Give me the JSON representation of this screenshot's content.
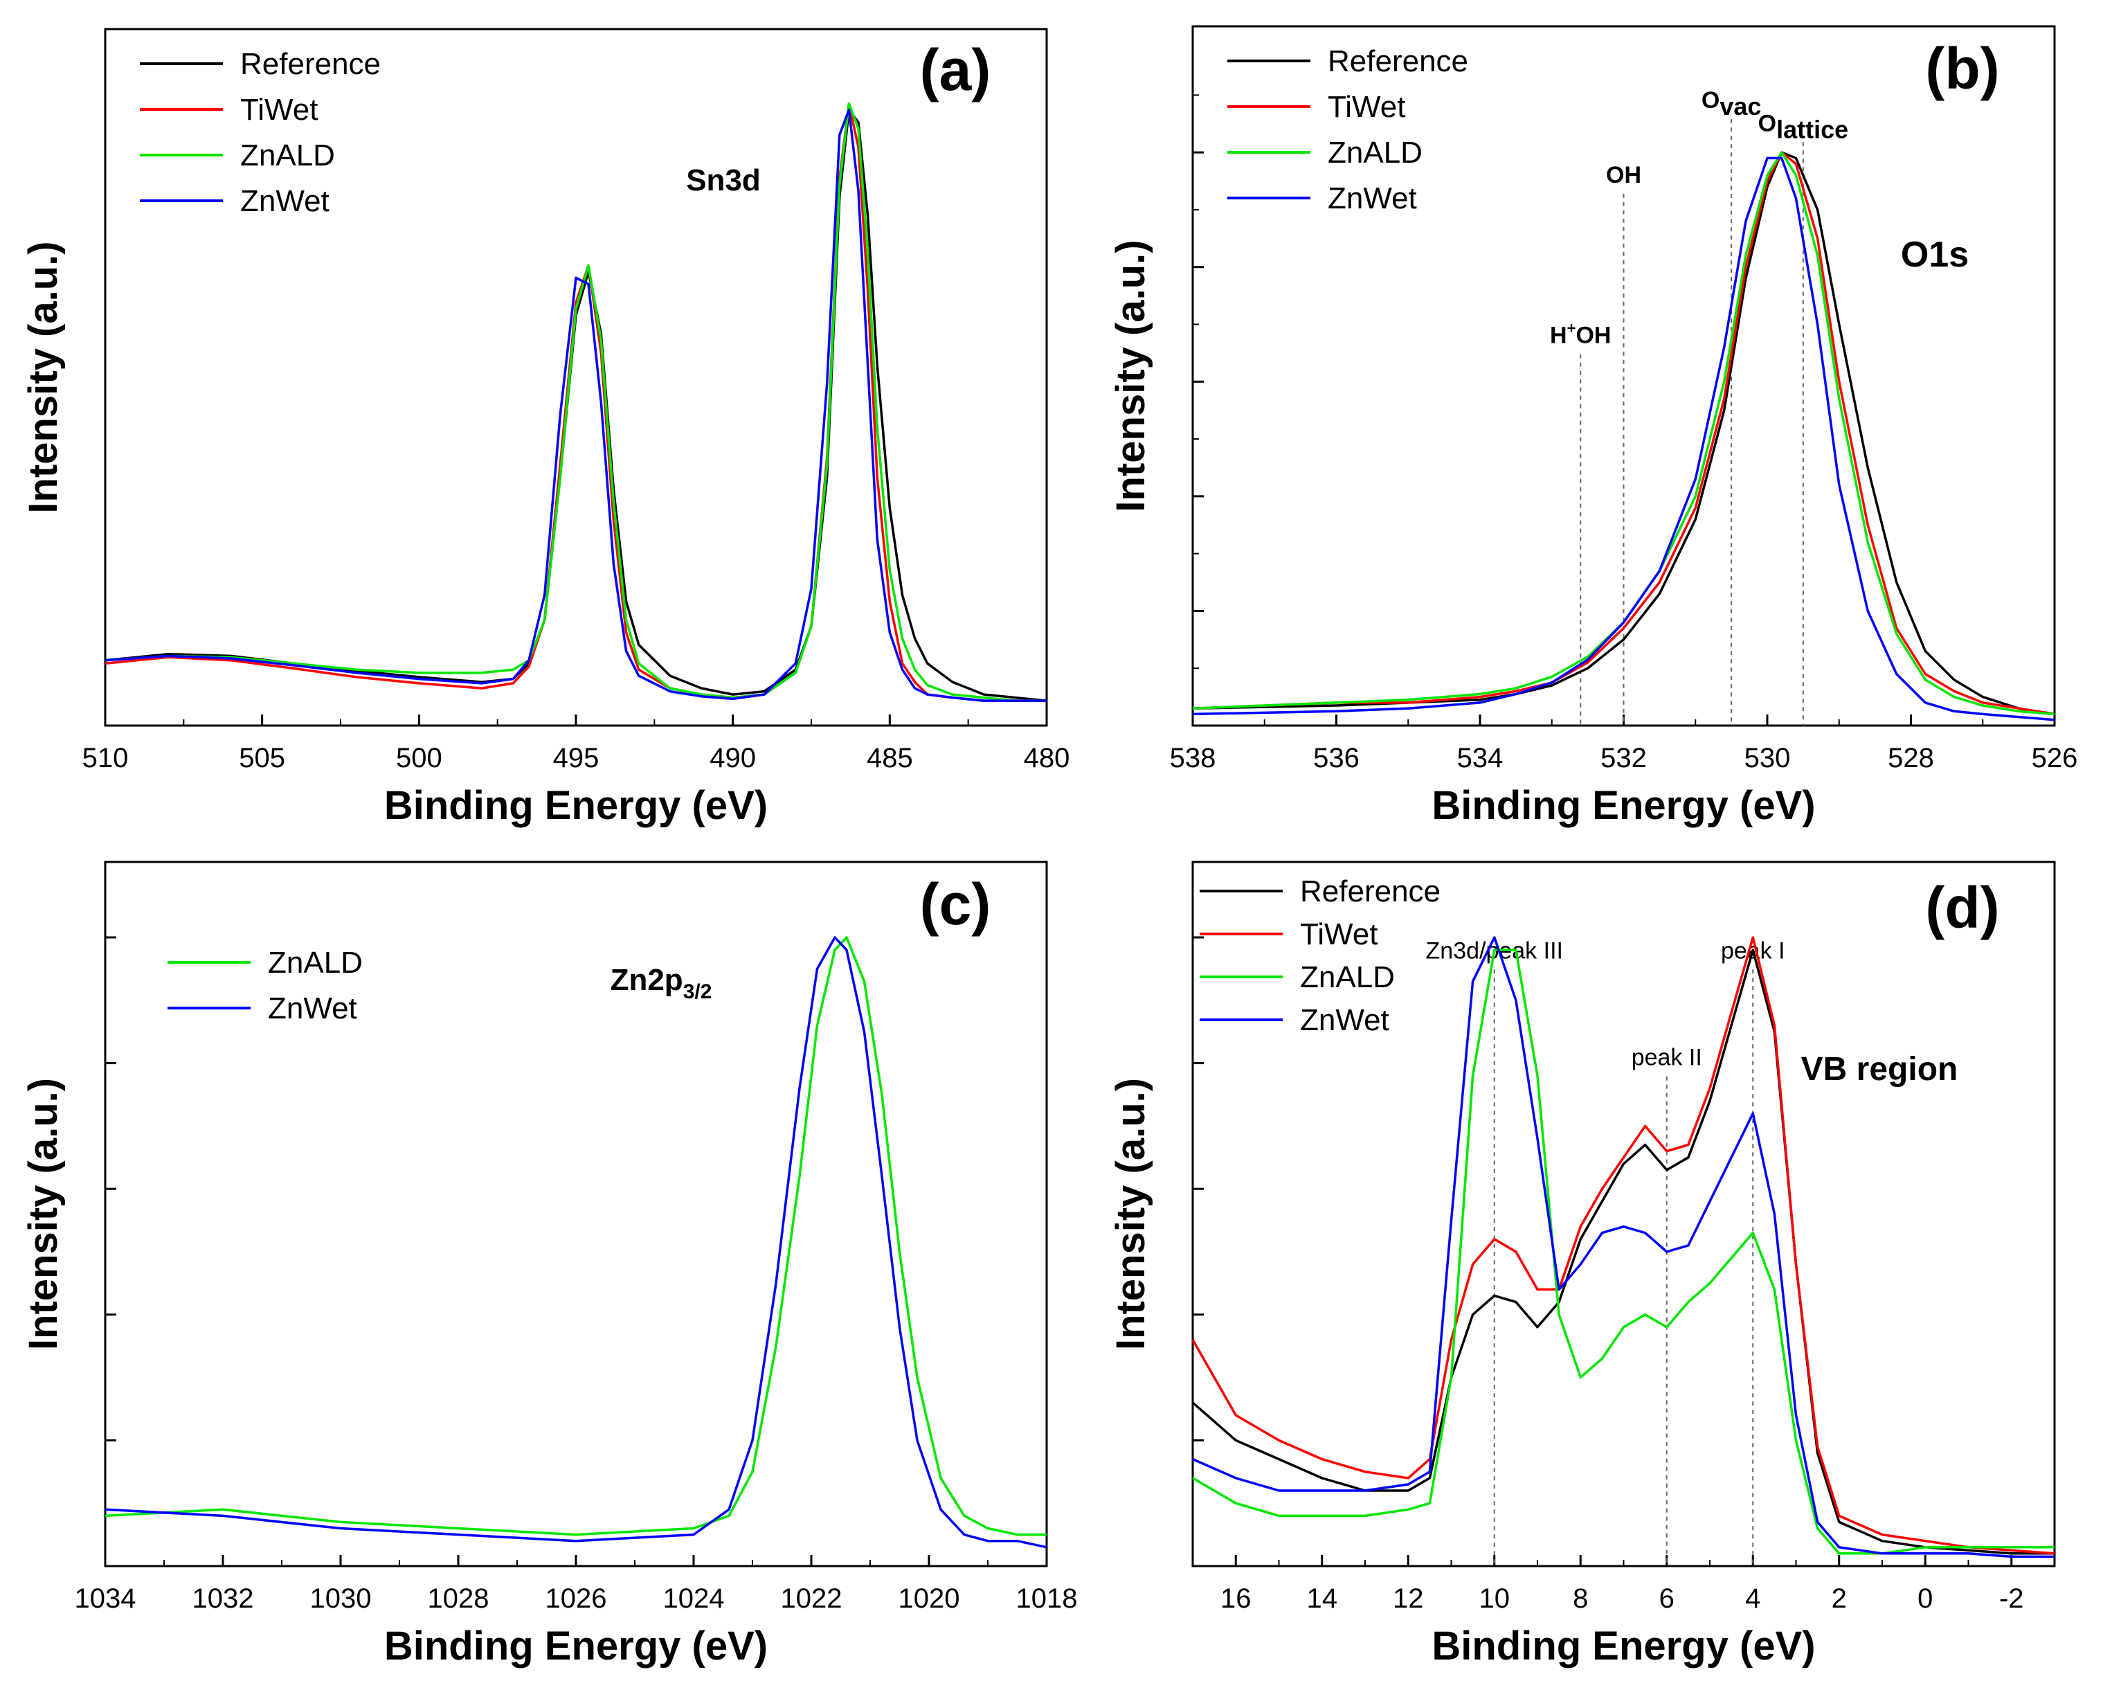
{
  "colors": {
    "Reference": "#000000",
    "TiWet": "#ff0000",
    "ZnALD": "#00e600",
    "ZnWet": "#0000ff",
    "axis": "#000000",
    "refline": "#666666"
  },
  "chart_data": [
    {
      "type": "line",
      "panel": "(a)",
      "title": "Sn3d",
      "xlabel": "Binding Energy (eV)",
      "ylabel": "Intensity (a.u.)",
      "xlim": [
        510,
        480
      ],
      "ylim": [
        0,
        1.0
      ],
      "xticks": [
        510,
        505,
        500,
        495,
        490,
        485,
        480
      ],
      "yticks": [],
      "legend": [
        "Reference",
        "TiWet",
        "ZnALD",
        "ZnWet"
      ],
      "annotations": [],
      "series": [
        {
          "name": "Reference",
          "x": [
            510,
            508,
            506,
            504,
            502,
            500,
            498,
            497,
            496.5,
            496,
            495.5,
            495,
            494.6,
            494.2,
            493.8,
            493.4,
            493,
            492,
            491,
            490,
            489,
            488,
            487.5,
            487,
            486.6,
            486.3,
            486,
            485.7,
            485.4,
            485,
            484.6,
            484.2,
            483.8,
            483,
            482,
            481,
            480
          ],
          "y": [
            0.105,
            0.115,
            0.112,
            0.1,
            0.088,
            0.078,
            0.07,
            0.075,
            0.1,
            0.17,
            0.4,
            0.66,
            0.73,
            0.63,
            0.38,
            0.2,
            0.13,
            0.08,
            0.06,
            0.05,
            0.055,
            0.09,
            0.16,
            0.4,
            0.85,
            0.99,
            0.97,
            0.82,
            0.58,
            0.35,
            0.21,
            0.14,
            0.1,
            0.07,
            0.05,
            0.045,
            0.04
          ]
        },
        {
          "name": "TiWet",
          "x": [
            510,
            508,
            506,
            504,
            502,
            500,
            498,
            497,
            496.5,
            496,
            495.5,
            495,
            494.6,
            494.2,
            493.8,
            493.4,
            493,
            492,
            491,
            490,
            489,
            488,
            487.5,
            487,
            486.6,
            486.3,
            486,
            485.7,
            485.4,
            485,
            484.6,
            484.2,
            483.8,
            483,
            482,
            481,
            480
          ],
          "y": [
            0.1,
            0.11,
            0.105,
            0.092,
            0.078,
            0.068,
            0.06,
            0.068,
            0.095,
            0.17,
            0.42,
            0.68,
            0.74,
            0.6,
            0.33,
            0.15,
            0.09,
            0.06,
            0.05,
            0.045,
            0.05,
            0.085,
            0.16,
            0.43,
            0.88,
            1.0,
            0.93,
            0.7,
            0.4,
            0.2,
            0.1,
            0.07,
            0.05,
            0.045,
            0.04,
            0.04,
            0.04
          ]
        },
        {
          "name": "ZnALD",
          "x": [
            510,
            508,
            506,
            504,
            502,
            500,
            498,
            497,
            496.5,
            496,
            495.5,
            495,
            494.6,
            494.2,
            493.8,
            493.4,
            493,
            492,
            491,
            490,
            489,
            488,
            487.5,
            487,
            486.6,
            486.3,
            486,
            485.7,
            485.4,
            485,
            484.6,
            484.2,
            483.8,
            483,
            482,
            481,
            480
          ],
          "y": [
            0.105,
            0.112,
            0.11,
            0.1,
            0.09,
            0.085,
            0.085,
            0.09,
            0.105,
            0.17,
            0.4,
            0.67,
            0.74,
            0.62,
            0.36,
            0.17,
            0.1,
            0.06,
            0.05,
            0.045,
            0.05,
            0.085,
            0.16,
            0.42,
            0.87,
            1.0,
            0.96,
            0.76,
            0.48,
            0.25,
            0.14,
            0.09,
            0.065,
            0.05,
            0.045,
            0.04,
            0.04
          ]
        },
        {
          "name": "ZnWet",
          "x": [
            510,
            508,
            506,
            504,
            502,
            500,
            498,
            497,
            496.5,
            496,
            495.5,
            495,
            494.6,
            494.2,
            493.8,
            493.4,
            493,
            492,
            491,
            490,
            489,
            488,
            487.5,
            487,
            486.6,
            486.3,
            486,
            485.7,
            485.4,
            485,
            484.6,
            484.2,
            483.8,
            483,
            482,
            481,
            480
          ],
          "y": [
            0.105,
            0.112,
            0.108,
            0.097,
            0.085,
            0.075,
            0.068,
            0.075,
            0.105,
            0.21,
            0.5,
            0.72,
            0.71,
            0.52,
            0.26,
            0.12,
            0.08,
            0.055,
            0.047,
            0.043,
            0.05,
            0.1,
            0.22,
            0.55,
            0.95,
            0.99,
            0.86,
            0.58,
            0.3,
            0.15,
            0.09,
            0.06,
            0.05,
            0.045,
            0.04,
            0.04,
            0.04
          ]
        }
      ]
    },
    {
      "type": "line",
      "panel": "(b)",
      "title": "O1s",
      "xlabel": "Binding Energy (eV)",
      "ylabel": "Intensity (a.u.)",
      "xlim": [
        538,
        526
      ],
      "ylim": [
        0,
        1.0
      ],
      "xticks": [
        538,
        536,
        534,
        532,
        530,
        528,
        526
      ],
      "yticks": [
        0.2,
        0.4,
        0.6,
        0.8,
        1.0
      ],
      "legend": [
        "Reference",
        "TiWet",
        "ZnALD",
        "ZnWet"
      ],
      "annotations": [
        {
          "label": "H",
          "sup": "+",
          "rest": "OH",
          "x": 532.6,
          "top": 0.66
        },
        {
          "label": "OH",
          "sup": "",
          "rest": "",
          "x": 532.0,
          "top": 0.94
        },
        {
          "label": "O",
          "sub": "vac",
          "rest": "",
          "x": 530.5,
          "top": 1.07
        },
        {
          "label": "O",
          "sub": "lattice",
          "rest": "",
          "x": 529.5,
          "top": 1.03
        }
      ],
      "series": [
        {
          "name": "Reference",
          "x": [
            538,
            536,
            535,
            534,
            533.5,
            533,
            532.5,
            532,
            531.5,
            531,
            530.6,
            530.3,
            530,
            529.8,
            529.6,
            529.3,
            529,
            528.6,
            528.2,
            527.8,
            527.4,
            527,
            526.5,
            526
          ],
          "y": [
            0.03,
            0.035,
            0.04,
            0.045,
            0.055,
            0.07,
            0.1,
            0.15,
            0.23,
            0.36,
            0.55,
            0.78,
            0.94,
            1.0,
            0.99,
            0.9,
            0.7,
            0.45,
            0.25,
            0.13,
            0.08,
            0.05,
            0.03,
            0.02
          ]
        },
        {
          "name": "TiWet",
          "x": [
            538,
            536,
            535,
            534,
            533.5,
            533,
            532.5,
            532,
            531.5,
            531,
            530.6,
            530.3,
            530,
            529.8,
            529.6,
            529.3,
            529,
            528.6,
            528.2,
            527.8,
            527.4,
            527,
            526.5,
            526
          ],
          "y": [
            0.03,
            0.04,
            0.04,
            0.05,
            0.06,
            0.075,
            0.11,
            0.17,
            0.25,
            0.38,
            0.57,
            0.8,
            0.95,
            1.0,
            0.98,
            0.85,
            0.6,
            0.35,
            0.17,
            0.09,
            0.06,
            0.04,
            0.03,
            0.02
          ]
        },
        {
          "name": "ZnALD",
          "x": [
            538,
            536,
            535,
            534,
            533.5,
            533,
            532.5,
            532,
            531.5,
            531,
            530.6,
            530.3,
            530,
            529.8,
            529.6,
            529.3,
            529,
            528.6,
            528.2,
            527.8,
            527.4,
            527,
            526.5,
            526
          ],
          "y": [
            0.03,
            0.04,
            0.045,
            0.055,
            0.065,
            0.085,
            0.12,
            0.18,
            0.27,
            0.4,
            0.6,
            0.82,
            0.96,
            1.0,
            0.96,
            0.82,
            0.57,
            0.32,
            0.16,
            0.08,
            0.05,
            0.035,
            0.025,
            0.02
          ]
        },
        {
          "name": "ZnWet",
          "x": [
            538,
            536,
            535,
            534,
            533.5,
            533,
            532.5,
            532,
            531.5,
            531,
            530.6,
            530.3,
            530,
            529.8,
            529.6,
            529.3,
            529,
            528.6,
            528.2,
            527.8,
            527.4,
            527,
            526.5,
            526
          ],
          "y": [
            0.02,
            0.025,
            0.03,
            0.04,
            0.055,
            0.075,
            0.115,
            0.18,
            0.27,
            0.43,
            0.66,
            0.88,
            0.99,
            0.99,
            0.92,
            0.7,
            0.42,
            0.2,
            0.09,
            0.04,
            0.025,
            0.02,
            0.015,
            0.01
          ]
        }
      ]
    },
    {
      "type": "line",
      "panel": "(c)",
      "title": "Zn2p",
      "title_sub": "3/2",
      "xlabel": "Binding Energy (eV)",
      "ylabel": "Intensity (a.u.)",
      "xlim": [
        1034,
        1018
      ],
      "ylim": [
        0,
        1.0
      ],
      "xticks": [
        1034,
        1032,
        1030,
        1028,
        1026,
        1024,
        1022,
        1020,
        1018
      ],
      "yticks": [
        0.2,
        0.4,
        0.6,
        0.8,
        1.0
      ],
      "legend": [
        "ZnALD",
        "ZnWet"
      ],
      "annotations": [],
      "series": [
        {
          "name": "ZnALD",
          "x": [
            1034,
            1032,
            1030,
            1028,
            1026,
            1024,
            1023.4,
            1023,
            1022.6,
            1022.2,
            1021.9,
            1021.6,
            1021.4,
            1021.1,
            1020.8,
            1020.5,
            1020.2,
            1019.8,
            1019.4,
            1019,
            1018.5,
            1018
          ],
          "y": [
            0.08,
            0.09,
            0.07,
            0.06,
            0.05,
            0.06,
            0.08,
            0.15,
            0.35,
            0.62,
            0.86,
            0.98,
            1.0,
            0.93,
            0.75,
            0.5,
            0.3,
            0.14,
            0.08,
            0.06,
            0.05,
            0.05
          ]
        },
        {
          "name": "ZnWet",
          "x": [
            1034,
            1032,
            1030,
            1028,
            1026,
            1024,
            1023.4,
            1023,
            1022.6,
            1022.2,
            1021.9,
            1021.6,
            1021.4,
            1021.1,
            1020.8,
            1020.5,
            1020.2,
            1019.8,
            1019.4,
            1019,
            1018.5,
            1018
          ],
          "y": [
            0.09,
            0.08,
            0.06,
            0.05,
            0.04,
            0.05,
            0.09,
            0.2,
            0.45,
            0.76,
            0.95,
            1.0,
            0.98,
            0.85,
            0.62,
            0.38,
            0.2,
            0.09,
            0.05,
            0.04,
            0.04,
            0.03
          ]
        }
      ]
    },
    {
      "type": "line",
      "panel": "(d)",
      "title": "VB region",
      "xlabel": "Binding Energy (eV)",
      "ylabel": "Intensity (a.u.)",
      "xlim": [
        17,
        -3
      ],
      "ylim": [
        0,
        1.0
      ],
      "xticks": [
        16,
        14,
        12,
        10,
        8,
        6,
        4,
        2,
        0,
        -2
      ],
      "yticks": [
        0.2,
        0.4,
        0.6,
        0.8,
        1.0
      ],
      "legend": [
        "Reference",
        "TiWet",
        "ZnALD",
        "ZnWet"
      ],
      "annotations": [
        {
          "label": "Zn3d/peak III",
          "x": 10.0,
          "top": 0.96
        },
        {
          "label": "peak II",
          "x": 6.0,
          "top": 0.79
        },
        {
          "label": "peak I",
          "x": 4.0,
          "top": 0.96
        }
      ],
      "series": [
        {
          "name": "Reference",
          "x": [
            17,
            16,
            15,
            14,
            13,
            12,
            11.5,
            11,
            10.5,
            10,
            9.5,
            9,
            8.5,
            8,
            7.5,
            7,
            6.5,
            6,
            5.5,
            5,
            4.5,
            4,
            3.5,
            3,
            2.5,
            2,
            1,
            0,
            -1,
            -2,
            -3
          ],
          "y": [
            0.26,
            0.2,
            0.17,
            0.14,
            0.12,
            0.12,
            0.14,
            0.3,
            0.4,
            0.43,
            0.42,
            0.38,
            0.42,
            0.52,
            0.58,
            0.64,
            0.67,
            0.63,
            0.65,
            0.74,
            0.86,
            0.98,
            0.85,
            0.48,
            0.18,
            0.07,
            0.04,
            0.03,
            0.025,
            0.02,
            0.02
          ]
        },
        {
          "name": "TiWet",
          "x": [
            17,
            16,
            15,
            14,
            13,
            12,
            11.5,
            11,
            10.5,
            10,
            9.5,
            9,
            8.5,
            8,
            7.5,
            7,
            6.5,
            6,
            5.5,
            5,
            4.5,
            4,
            3.5,
            3,
            2.5,
            2,
            1,
            0,
            -1,
            -2,
            -3
          ],
          "y": [
            0.36,
            0.24,
            0.2,
            0.17,
            0.15,
            0.14,
            0.17,
            0.36,
            0.48,
            0.52,
            0.5,
            0.44,
            0.44,
            0.54,
            0.6,
            0.65,
            0.7,
            0.66,
            0.67,
            0.76,
            0.88,
            1.0,
            0.86,
            0.48,
            0.19,
            0.08,
            0.05,
            0.04,
            0.03,
            0.025,
            0.02
          ]
        },
        {
          "name": "ZnALD",
          "x": [
            17,
            16,
            15,
            14,
            13,
            12,
            11.5,
            11,
            10.5,
            10,
            9.5,
            9,
            8.5,
            8,
            7.5,
            7,
            6.5,
            6,
            5.5,
            5,
            4.5,
            4,
            3.5,
            3,
            2.5,
            2,
            1,
            0,
            -1,
            -2,
            -3
          ],
          "y": [
            0.14,
            0.1,
            0.08,
            0.08,
            0.08,
            0.09,
            0.1,
            0.3,
            0.78,
            0.98,
            0.98,
            0.78,
            0.4,
            0.3,
            0.33,
            0.38,
            0.4,
            0.38,
            0.42,
            0.45,
            0.49,
            0.53,
            0.44,
            0.2,
            0.06,
            0.02,
            0.02,
            0.03,
            0.03,
            0.03,
            0.03
          ]
        },
        {
          "name": "ZnWet",
          "x": [
            17,
            16,
            15,
            14,
            13,
            12,
            11.5,
            11,
            10.5,
            10,
            9.5,
            9,
            8.5,
            8,
            7.5,
            7,
            6.5,
            6,
            5.5,
            5,
            4.5,
            4,
            3.5,
            3,
            2.5,
            2,
            1,
            0,
            -1,
            -2,
            -3
          ],
          "y": [
            0.17,
            0.14,
            0.12,
            0.12,
            0.12,
            0.13,
            0.15,
            0.55,
            0.93,
            1.0,
            0.9,
            0.68,
            0.44,
            0.48,
            0.53,
            0.54,
            0.53,
            0.5,
            0.51,
            0.58,
            0.65,
            0.72,
            0.56,
            0.24,
            0.07,
            0.03,
            0.02,
            0.02,
            0.02,
            0.015,
            0.015
          ]
        }
      ]
    }
  ]
}
